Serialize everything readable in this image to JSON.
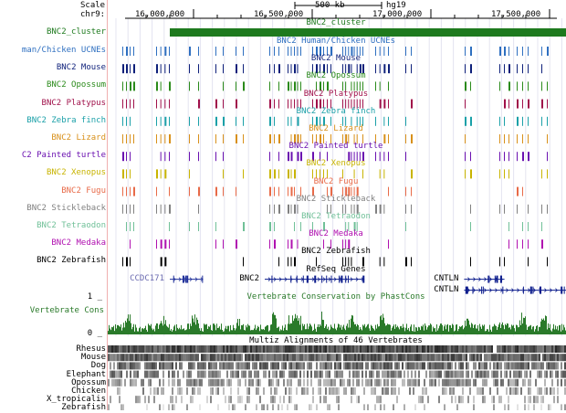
{
  "ruler": {
    "scale_label": "Scale",
    "chrom_label": "chr9:",
    "scale_bar_text": "500 kb",
    "assembly": "hg19",
    "coord_ticks": [
      {
        "label": "16,000,000",
        "pos": 16000000
      },
      {
        "label": "16,500,000",
        "pos": 16500000
      },
      {
        "label": "17,000,000",
        "pos": 17000000
      },
      {
        "label": "17,500,000",
        "pos": 17500000
      }
    ]
  },
  "cluster": {
    "label": "BNC2_cluster",
    "center_label": "BNC2_cluster",
    "color": "#1e7a1e",
    "start": 15900000,
    "end": 17640000
  },
  "ucne_tracks": [
    {
      "label": "man/Chicken UCNEs",
      "center_label": "BNC2 Human/Chicken UCNEs",
      "color": "#2e6fc0"
    },
    {
      "label": "BNC2 Mouse",
      "center_label": "BNC2 Mouse",
      "color": "#0d1f7a"
    },
    {
      "label": "BNC2 Opossum",
      "center_label": "BNC2 Opossum",
      "color": "#2a8a1a"
    },
    {
      "label": "BNC2 Platypus",
      "center_label": "BNC2 Platypus",
      "color": "#a0104a"
    },
    {
      "label": "BNC2 Zebra finch",
      "center_label": "BNC2 Zebra finch",
      "color": "#1aa0a8"
    },
    {
      "label": "BNC2 Lizard",
      "center_label": "BNC2 Lizard",
      "color": "#d8901a"
    },
    {
      "label": "C2 Painted turtle",
      "center_label": "BNC2 Painted turtle",
      "color": "#6a10b0"
    },
    {
      "label": "BNC2 Xenopus",
      "center_label": "BNC2 Xenopus",
      "color": "#c8b400"
    },
    {
      "label": "BNC2 Fugu",
      "center_label": "BNC2 Fugu",
      "color": "#e86a48"
    },
    {
      "label": "BNC2 Stickleback",
      "center_label": "BNC2 Stickleback",
      "color": "#808080"
    },
    {
      "label": "BNC2 Tetraodon",
      "center_label": "BNC2 Tetraodon",
      "color": "#70c098"
    },
    {
      "label": "BNC2 Medaka",
      "center_label": "BNC2 Medaka",
      "color": "#b010b0"
    },
    {
      "label": "BNC2 Zebrafish",
      "center_label": "BNC2 Zebrafish",
      "color": "#000000"
    }
  ],
  "refseq": {
    "center_label": "RefSeq Genes",
    "genes": [
      {
        "name": "CCDC171",
        "name_side": "left",
        "start": 15900000,
        "end": 16040000,
        "color": "#20309a",
        "label_color": "#6a6ab0"
      },
      {
        "name": "BNC2",
        "name_side": "left",
        "start": 16300000,
        "end": 16720000,
        "color": "#0c1c8c",
        "label_color": "#000000"
      },
      {
        "name": "CNTLN",
        "name_side": "left",
        "start": 17140000,
        "end": 17310000,
        "color": "#0c1c8c",
        "label_color": "#000000"
      },
      {
        "name": "CNTLN",
        "name_side": "left",
        "start": 17140000,
        "end": 17640000,
        "color": "#0c1c8c",
        "label_color": "#000000",
        "row": 2
      }
    ]
  },
  "conservation": {
    "label": "Vertebrate Cons",
    "center_label": "Vertebrate Conservation by PhastCons",
    "max_label": "1 _",
    "min_label": "0 _",
    "color": "#2a7a2a"
  },
  "multiz": {
    "center_label": "Multiz Alignments of 46 Vertebrates",
    "species": [
      "Rhesus",
      "Mouse",
      "Dog",
      "Elephant",
      "Opossum",
      "Chicken",
      "X_tropicalis",
      "Zebrafish"
    ]
  }
}
